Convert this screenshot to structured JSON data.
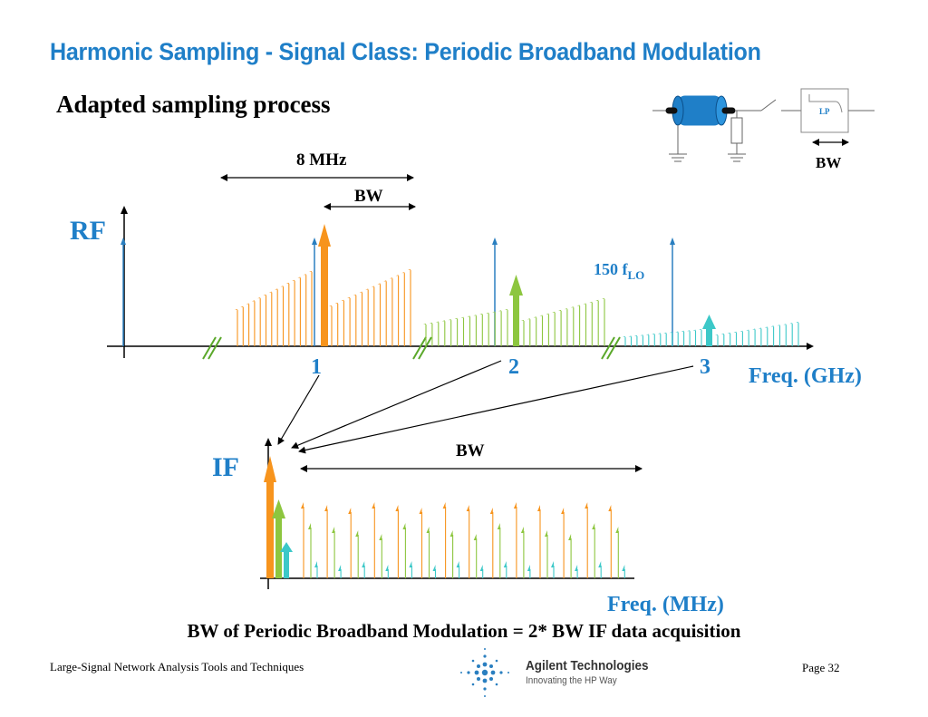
{
  "slide": {
    "title": "Harmonic Sampling - Signal Class: Periodic Broadband Modulation",
    "subtitle": "Adapted sampling process",
    "conclusion": "BW of Periodic Broadband Modulation = 2* BW IF data acquisition",
    "footer_left": "Large-Signal Network Analysis Tools and Techniques",
    "footer_right": "Page 32",
    "logo_name": "Agilent Technologies",
    "logo_tagline": "Innovating the HP Way"
  },
  "rf_plot": {
    "ylabel": "RF",
    "xlabel": "Freq. (GHz)",
    "span_label": "8 MHz",
    "bw_label": "BW",
    "lo_label": "150 f",
    "lo_sub": "LO",
    "harmonic_labels": [
      "1",
      "2",
      "3"
    ]
  },
  "if_plot": {
    "ylabel": "IF",
    "xlabel": "Freq. (MHz)",
    "bw_label": "BW"
  },
  "circuit": {
    "filter_label": "LP",
    "bw_label": "BW"
  },
  "colors": {
    "title_blue": "#1f7fc8",
    "orange": "#f7941d",
    "green": "#8dc63f",
    "cyan": "#3cc8c8",
    "lo_blue": "#2a7fc0"
  }
}
